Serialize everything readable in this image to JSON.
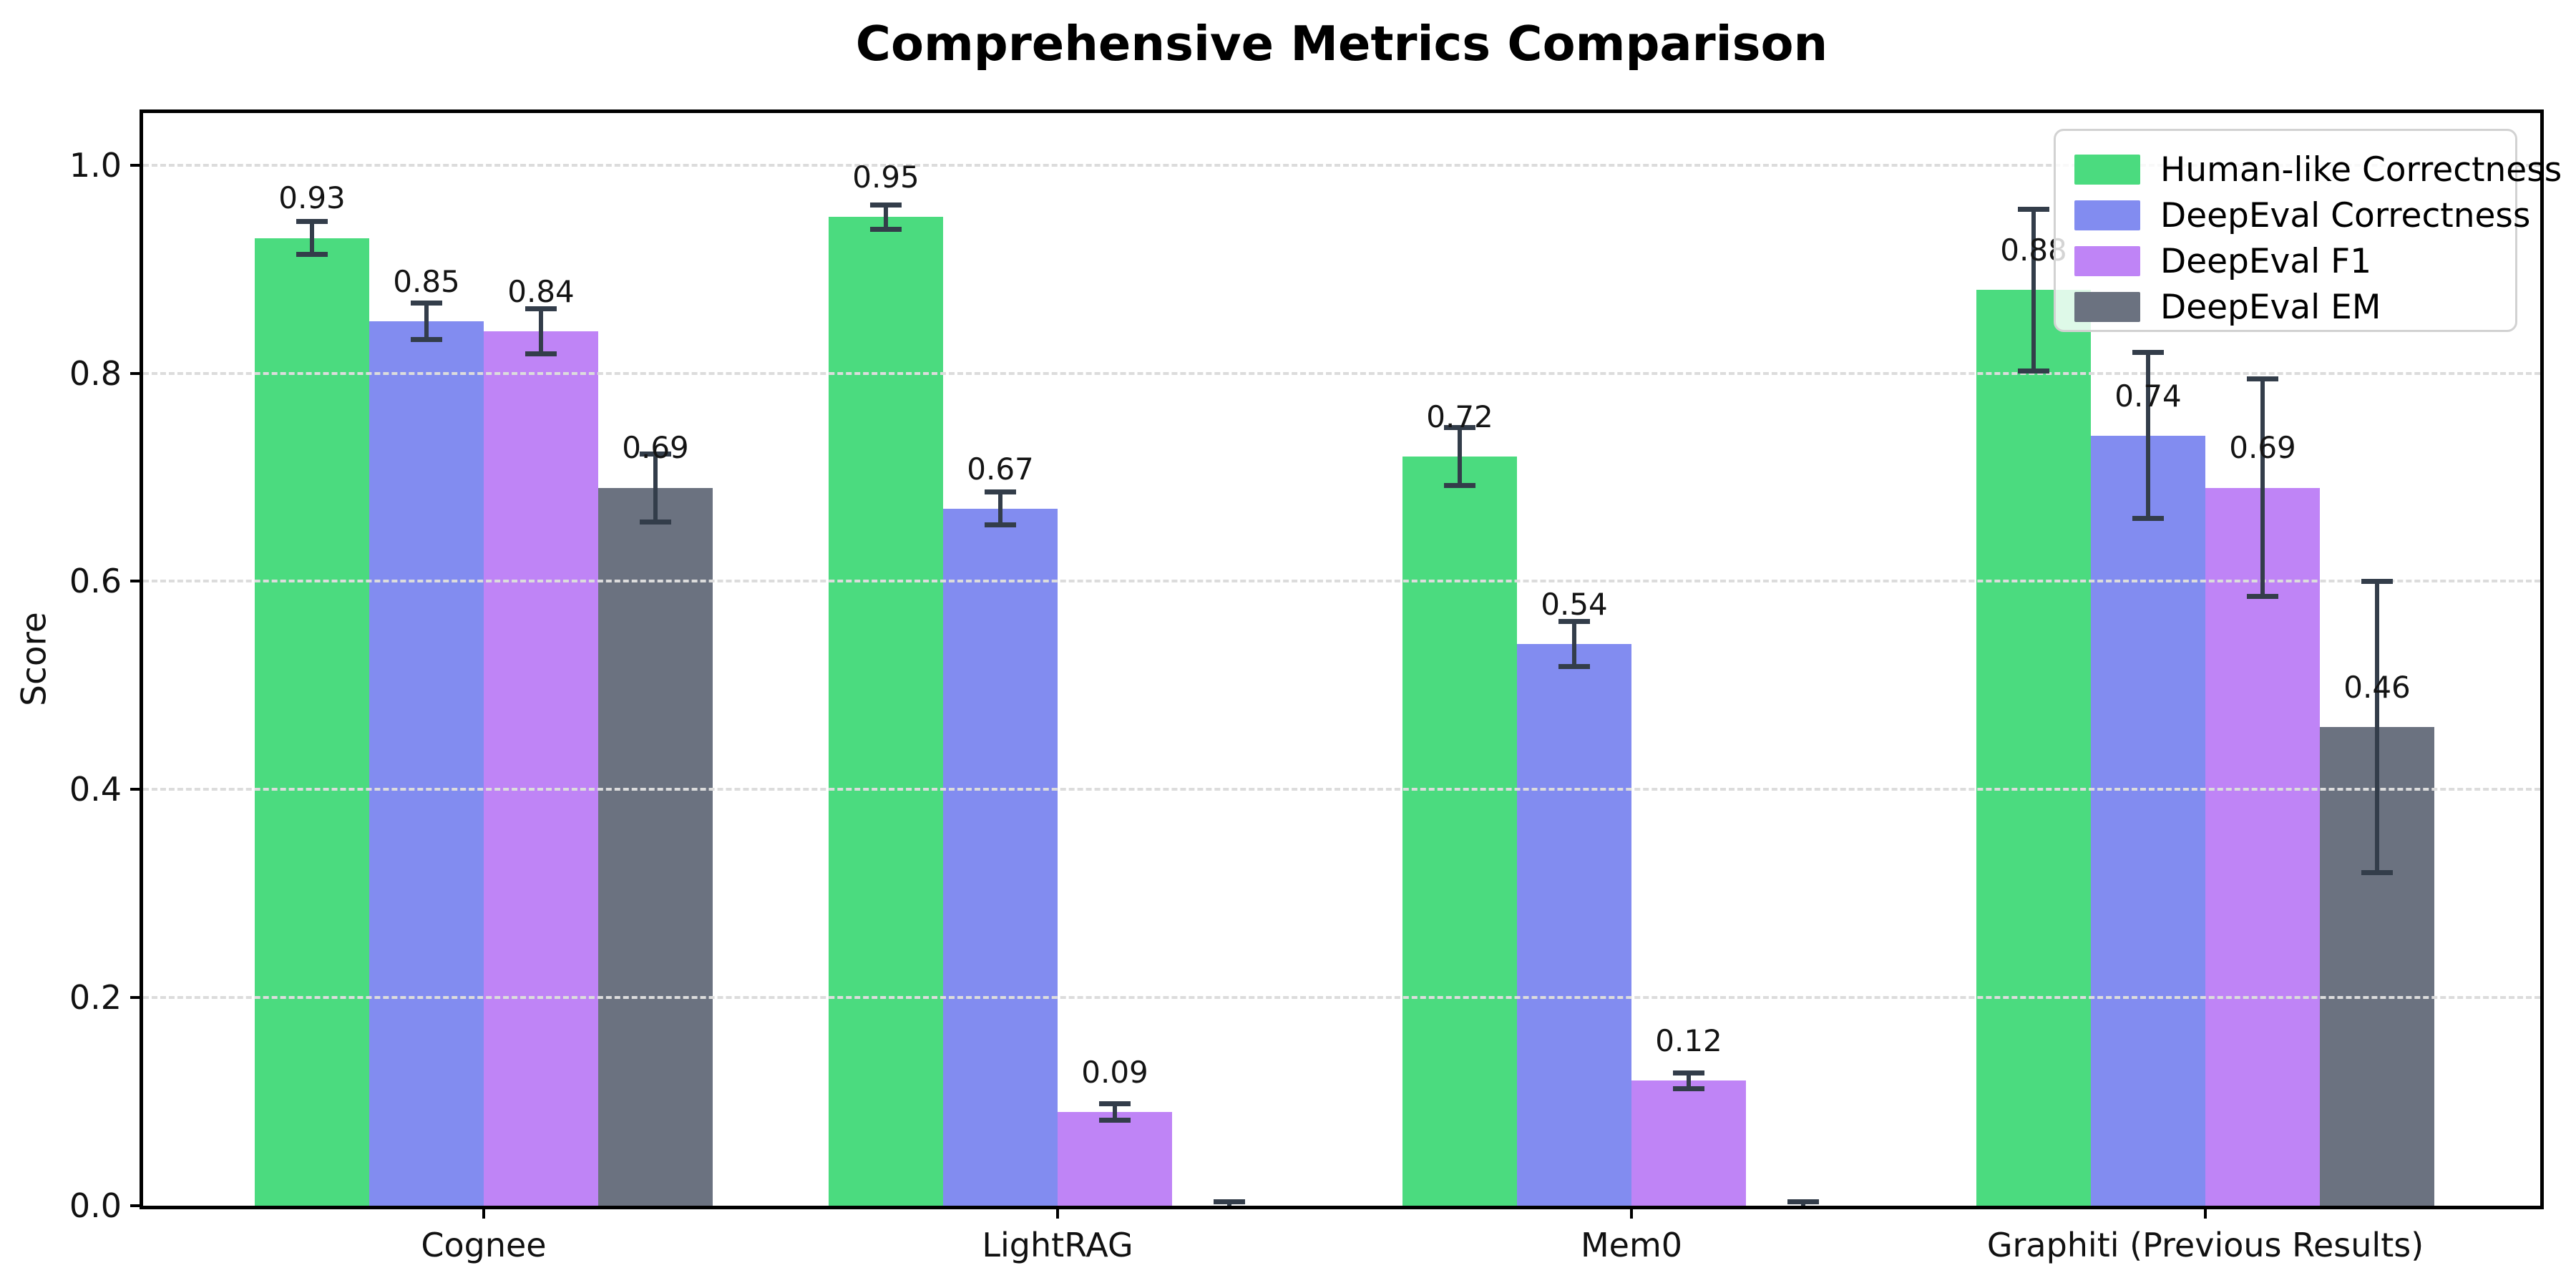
{
  "chart_data": {
    "type": "bar",
    "title": "Comprehensive Metrics Comparison",
    "ylabel": "Score",
    "xlabel": "",
    "categories": [
      "Cognee",
      "LightRAG",
      "Mem0",
      "Graphiti (Previous Results)"
    ],
    "series": [
      {
        "name": "Human-like Correctness",
        "color": "#4bdb7f",
        "values": [
          0.93,
          0.95,
          0.72,
          0.88
        ],
        "errors": [
          0.016,
          0.012,
          0.028,
          0.078
        ],
        "value_labels": [
          "0.93",
          "0.95",
          "0.72",
          "0.88"
        ]
      },
      {
        "name": "DeepEval Correctness",
        "color": "#828cf0",
        "values": [
          0.85,
          0.67,
          0.54,
          0.74
        ],
        "errors": [
          0.018,
          0.016,
          0.022,
          0.08
        ],
        "value_labels": [
          "0.85",
          "0.67",
          "0.54",
          "0.74"
        ]
      },
      {
        "name": "DeepEval F1",
        "color": "#bf84f6",
        "values": [
          0.84,
          0.09,
          0.12,
          0.69
        ],
        "errors": [
          0.022,
          0.008,
          0.008,
          0.105
        ],
        "value_labels": [
          "0.84",
          "0.09",
          "0.12",
          "0.69"
        ]
      },
      {
        "name": "DeepEval EM",
        "color": "#6b7280",
        "values": [
          0.69,
          0.0,
          0.0,
          0.46
        ],
        "errors": [
          0.033,
          0.004,
          0.004,
          0.14
        ],
        "value_labels": [
          "0.69",
          "",
          "",
          "0.46"
        ]
      }
    ],
    "ylim": [
      0,
      1.05
    ],
    "yticks": [
      0.0,
      0.2,
      0.4,
      0.6,
      0.8,
      1.0
    ],
    "ytick_labels": [
      "0.0",
      "0.2",
      "0.4",
      "0.6",
      "0.8",
      "1.0"
    ],
    "grid": true,
    "grid_style": "dashed",
    "legend_position": "upper right",
    "error_bar_color": "#333d4a"
  }
}
